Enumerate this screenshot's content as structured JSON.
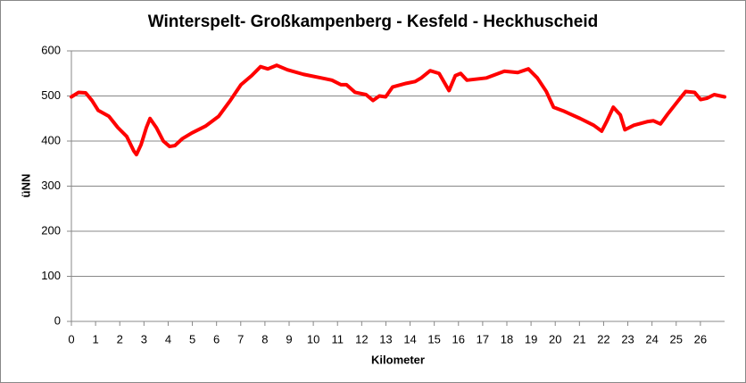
{
  "chart_data": {
    "type": "line",
    "title": "Winterspelt- Großkampenberg - Kesfeld - Heckhuscheid",
    "x_label": "Kilometer",
    "y_label": "üNN",
    "x": [
      0,
      0.3,
      0.59,
      0.85,
      1.11,
      1.55,
      1.92,
      2.29,
      2.58,
      2.69,
      2.88,
      3.1,
      3.25,
      3.51,
      3.8,
      4.06,
      4.28,
      4.58,
      4.98,
      5.54,
      6.09,
      6.57,
      7.01,
      7.45,
      7.82,
      8.12,
      8.49,
      8.93,
      9.59,
      10.33,
      10.77,
      11.14,
      11.37,
      11.73,
      12.18,
      12.47,
      12.73,
      12.99,
      13.28,
      13.84,
      14.21,
      14.46,
      14.83,
      15.2,
      15.61,
      15.87,
      16.09,
      16.35,
      17.16,
      17.9,
      18.45,
      18.89,
      19.26,
      19.63,
      19.93,
      20.37,
      21.03,
      21.59,
      21.92,
      22.14,
      22.4,
      22.69,
      22.88,
      23.25,
      23.8,
      24.06,
      24.35,
      24.65,
      25.09,
      25.39,
      25.76,
      26.01,
      26.27,
      26.57,
      27
    ],
    "series": [
      {
        "name": "üNN",
        "color": "#ff0000",
        "values": [
          498,
          508,
          507,
          490,
          468,
          455,
          430,
          410,
          378,
          370,
          392,
          430,
          450,
          430,
          400,
          388,
          390,
          405,
          418,
          433,
          455,
          490,
          525,
          545,
          565,
          560,
          568,
          558,
          548,
          540,
          535,
          525,
          525,
          508,
          503,
          490,
          500,
          498,
          520,
          528,
          532,
          540,
          556,
          550,
          512,
          545,
          550,
          535,
          540,
          555,
          552,
          560,
          540,
          510,
          475,
          466,
          450,
          435,
          422,
          445,
          475,
          458,
          425,
          435,
          443,
          445,
          438,
          460,
          490,
          510,
          508,
          492,
          495,
          503,
          498
        ]
      }
    ],
    "xlim": [
      0,
      27
    ],
    "xticks": [
      0,
      1,
      2,
      3,
      4,
      5,
      6,
      7,
      8,
      9,
      10,
      11,
      12,
      13,
      14,
      15,
      16,
      17,
      18,
      19,
      20,
      21,
      22,
      23,
      24,
      25,
      26
    ],
    "ylim": [
      0,
      600
    ],
    "yticks": [
      0,
      100,
      200,
      300,
      400,
      500,
      600
    ],
    "grid": true
  }
}
